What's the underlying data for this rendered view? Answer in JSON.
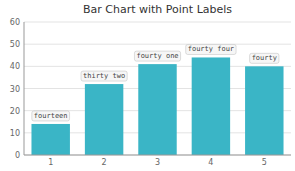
{
  "chart_data": {
    "type": "bar",
    "title": "Bar Chart with Point Labels",
    "categories": [
      1,
      2,
      3,
      4,
      5
    ],
    "values": [
      14,
      32,
      41,
      44,
      40
    ],
    "value_labels": [
      "fourteen",
      "thirty two",
      "fourty one",
      "fourty four",
      "fourty"
    ],
    "data_labels": true,
    "color": "#3ab5c6",
    "ylim": [
      0,
      60
    ],
    "yticks": [
      0,
      10,
      20,
      30,
      40,
      50,
      60
    ],
    "grid": true
  }
}
